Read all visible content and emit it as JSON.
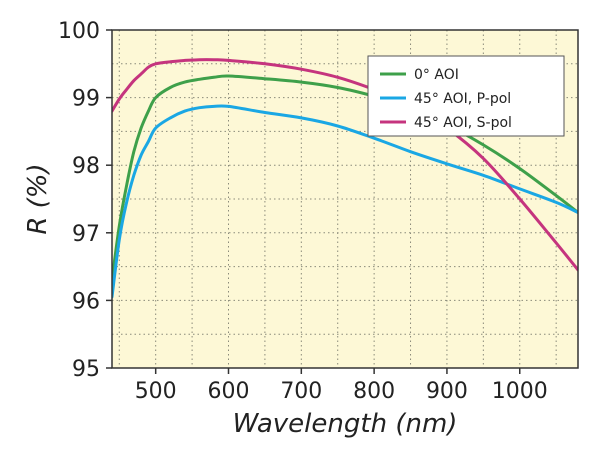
{
  "chart_data": {
    "type": "line",
    "title": "",
    "xlabel": "Wavelength (nm)",
    "ylabel": "R (%)",
    "xlim": [
      440,
      1080
    ],
    "ylim": [
      95,
      100
    ],
    "x_ticks": [
      500,
      600,
      700,
      800,
      900,
      1000
    ],
    "y_ticks": [
      95,
      96,
      97,
      98,
      99,
      100
    ],
    "grid": "dotted",
    "background": "#fdf8d6",
    "legend_position": "top-right",
    "series": [
      {
        "name": "0° AOI",
        "color": "#3ea04a",
        "points": [
          [
            440,
            96.3
          ],
          [
            450,
            97.1
          ],
          [
            460,
            97.7
          ],
          [
            470,
            98.2
          ],
          [
            480,
            98.55
          ],
          [
            490,
            98.8
          ],
          [
            500,
            99.0
          ],
          [
            520,
            99.15
          ],
          [
            540,
            99.23
          ],
          [
            560,
            99.27
          ],
          [
            580,
            99.3
          ],
          [
            600,
            99.32
          ],
          [
            650,
            99.28
          ],
          [
            700,
            99.23
          ],
          [
            750,
            99.15
          ],
          [
            800,
            99.02
          ],
          [
            850,
            98.85
          ],
          [
            900,
            98.6
          ],
          [
            950,
            98.3
          ],
          [
            1000,
            97.95
          ],
          [
            1050,
            97.55
          ],
          [
            1080,
            97.3
          ]
        ]
      },
      {
        "name": "45° AOI, P-pol",
        "color": "#1aa7e4",
        "points": [
          [
            440,
            96.05
          ],
          [
            450,
            96.9
          ],
          [
            460,
            97.45
          ],
          [
            470,
            97.85
          ],
          [
            480,
            98.15
          ],
          [
            490,
            98.35
          ],
          [
            500,
            98.55
          ],
          [
            520,
            98.7
          ],
          [
            540,
            98.8
          ],
          [
            560,
            98.85
          ],
          [
            580,
            98.87
          ],
          [
            600,
            98.87
          ],
          [
            650,
            98.78
          ],
          [
            700,
            98.7
          ],
          [
            750,
            98.58
          ],
          [
            800,
            98.4
          ],
          [
            850,
            98.2
          ],
          [
            900,
            98.02
          ],
          [
            950,
            97.85
          ],
          [
            1000,
            97.65
          ],
          [
            1050,
            97.45
          ],
          [
            1080,
            97.3
          ]
        ]
      },
      {
        "name": "45° AOI, S-pol",
        "color": "#c5347e",
        "points": [
          [
            440,
            98.8
          ],
          [
            450,
            98.98
          ],
          [
            460,
            99.12
          ],
          [
            470,
            99.25
          ],
          [
            480,
            99.35
          ],
          [
            490,
            99.45
          ],
          [
            500,
            99.5
          ],
          [
            520,
            99.53
          ],
          [
            540,
            99.55
          ],
          [
            560,
            99.56
          ],
          [
            580,
            99.56
          ],
          [
            600,
            99.55
          ],
          [
            650,
            99.5
          ],
          [
            700,
            99.42
          ],
          [
            750,
            99.3
          ],
          [
            800,
            99.12
          ],
          [
            850,
            98.9
          ],
          [
            900,
            98.55
          ],
          [
            950,
            98.1
          ],
          [
            1000,
            97.5
          ],
          [
            1050,
            96.85
          ],
          [
            1080,
            96.45
          ]
        ]
      }
    ]
  }
}
